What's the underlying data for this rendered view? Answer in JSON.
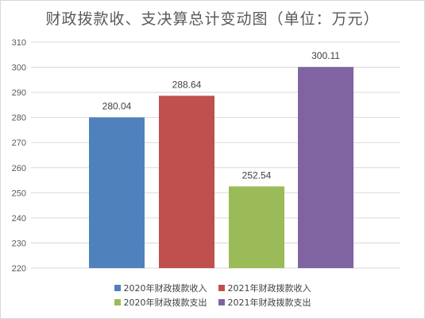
{
  "chart_data": {
    "type": "bar",
    "title": "财政拨款收、支决算总计变动图（单位：万元）",
    "categories": [
      "2020年财政拨款收入",
      "2021年财政拨款收入",
      "2020年财政拨款支出",
      "2021年财政拨款支出"
    ],
    "values": [
      280.04,
      288.64,
      252.54,
      300.11
    ],
    "data_labels": [
      "280.04",
      "288.64",
      "252.54",
      "300.11"
    ],
    "colors": [
      "#4f81bd",
      "#c0504d",
      "#9bbb59",
      "#8064a2"
    ],
    "ylim": [
      220,
      310
    ],
    "yticks": [
      "220",
      "230",
      "240",
      "250",
      "260",
      "270",
      "280",
      "290",
      "300",
      "310"
    ],
    "grid": true,
    "legend_position": "bottom"
  }
}
